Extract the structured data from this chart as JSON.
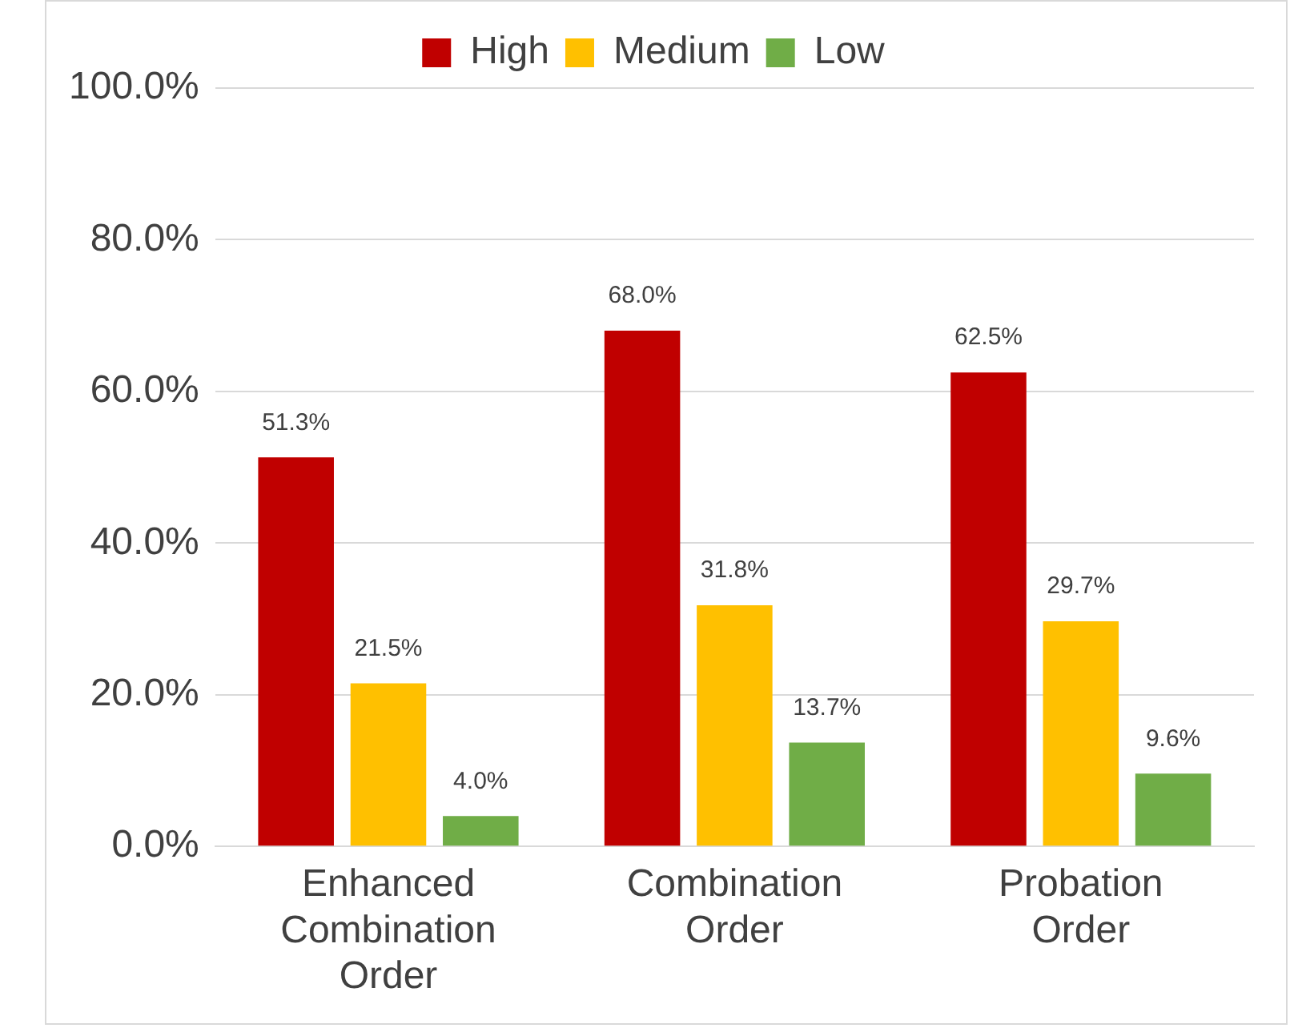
{
  "chart_data": {
    "type": "bar",
    "categories": [
      "Enhanced Combination Order",
      "Combination Order",
      "Probation Order"
    ],
    "series": [
      {
        "name": "High",
        "color": "#c00000",
        "values": [
          51.3,
          68.0,
          62.5
        ]
      },
      {
        "name": "Medium",
        "color": "#ffc000",
        "values": [
          21.5,
          31.8,
          29.7
        ]
      },
      {
        "name": "Low",
        "color": "#70ad47",
        "values": [
          4.0,
          13.7,
          9.6
        ]
      }
    ],
    "value_labels": [
      [
        "51.3%",
        "68.0%",
        "62.5%"
      ],
      [
        "21.5%",
        "31.8%",
        "29.7%"
      ],
      [
        "4.0%",
        "13.7%",
        "9.6%"
      ]
    ],
    "ylim": [
      0,
      100
    ],
    "yticks": [
      {
        "value": 0,
        "label": "0.0%"
      },
      {
        "value": 20,
        "label": "20.0%"
      },
      {
        "value": 40,
        "label": "40.0%"
      },
      {
        "value": 60,
        "label": "60.0%"
      },
      {
        "value": 80,
        "label": "80.0%"
      },
      {
        "value": 100,
        "label": "100.0%"
      }
    ],
    "grid": "y",
    "legend": "top"
  }
}
